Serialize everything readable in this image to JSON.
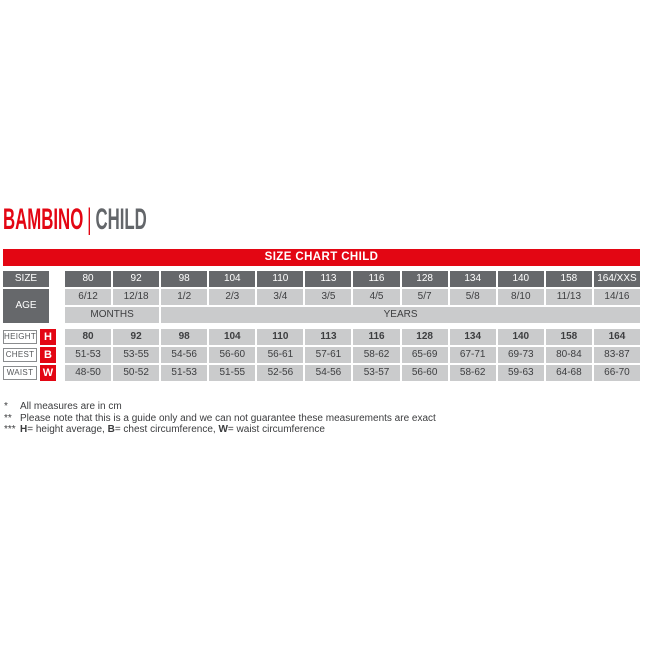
{
  "title": {
    "primary": "BAMBINO",
    "separator": "|",
    "secondary": "CHILD"
  },
  "banner": "SIZE CHART CHILD",
  "table": {
    "size_label": "SIZE",
    "age_label": "AGE",
    "months_label": "MONTHS",
    "years_label": "YEARS",
    "sizes": [
      "80",
      "92",
      "98",
      "104",
      "110",
      "113",
      "116",
      "128",
      "134",
      "140",
      "158",
      "164/XXS"
    ],
    "ages": [
      "6/12",
      "12/18",
      "1/2",
      "2/3",
      "3/4",
      "3/5",
      "4/5",
      "5/7",
      "5/8",
      "8/10",
      "11/13",
      "14/16"
    ],
    "measure_rows": [
      {
        "label": "HEIGHT",
        "badge": "H",
        "values": [
          "80",
          "92",
          "98",
          "104",
          "110",
          "113",
          "116",
          "128",
          "134",
          "140",
          "158",
          "164"
        ]
      },
      {
        "label": "CHEST",
        "badge": "B",
        "values": [
          "51-53",
          "53-55",
          "54-56",
          "56-60",
          "56-61",
          "57-61",
          "58-62",
          "65-69",
          "67-71",
          "69-73",
          "80-84",
          "83-87"
        ]
      },
      {
        "label": "WAIST",
        "badge": "W",
        "values": [
          "48-50",
          "50-52",
          "51-53",
          "51-55",
          "52-56",
          "54-56",
          "53-57",
          "56-60",
          "58-62",
          "59-63",
          "64-68",
          "66-70"
        ]
      }
    ]
  },
  "footnotes": {
    "f1": {
      "marker": "*",
      "text": "All measures are in cm"
    },
    "f2": {
      "marker": "**",
      "text": "Please note that this is a guide only and we can not guarantee these measurements are exact"
    },
    "f3": {
      "marker": "***",
      "b1": "H",
      "t1": "= height average, ",
      "b2": "B",
      "t2": "= chest circumference, ",
      "b3": "W",
      "t3": "= waist circumference"
    }
  },
  "colors": {
    "red": "#e30613",
    "dark_gray": "#66686b",
    "light_gray": "#cacbcc",
    "title_gray": "#63666a"
  }
}
